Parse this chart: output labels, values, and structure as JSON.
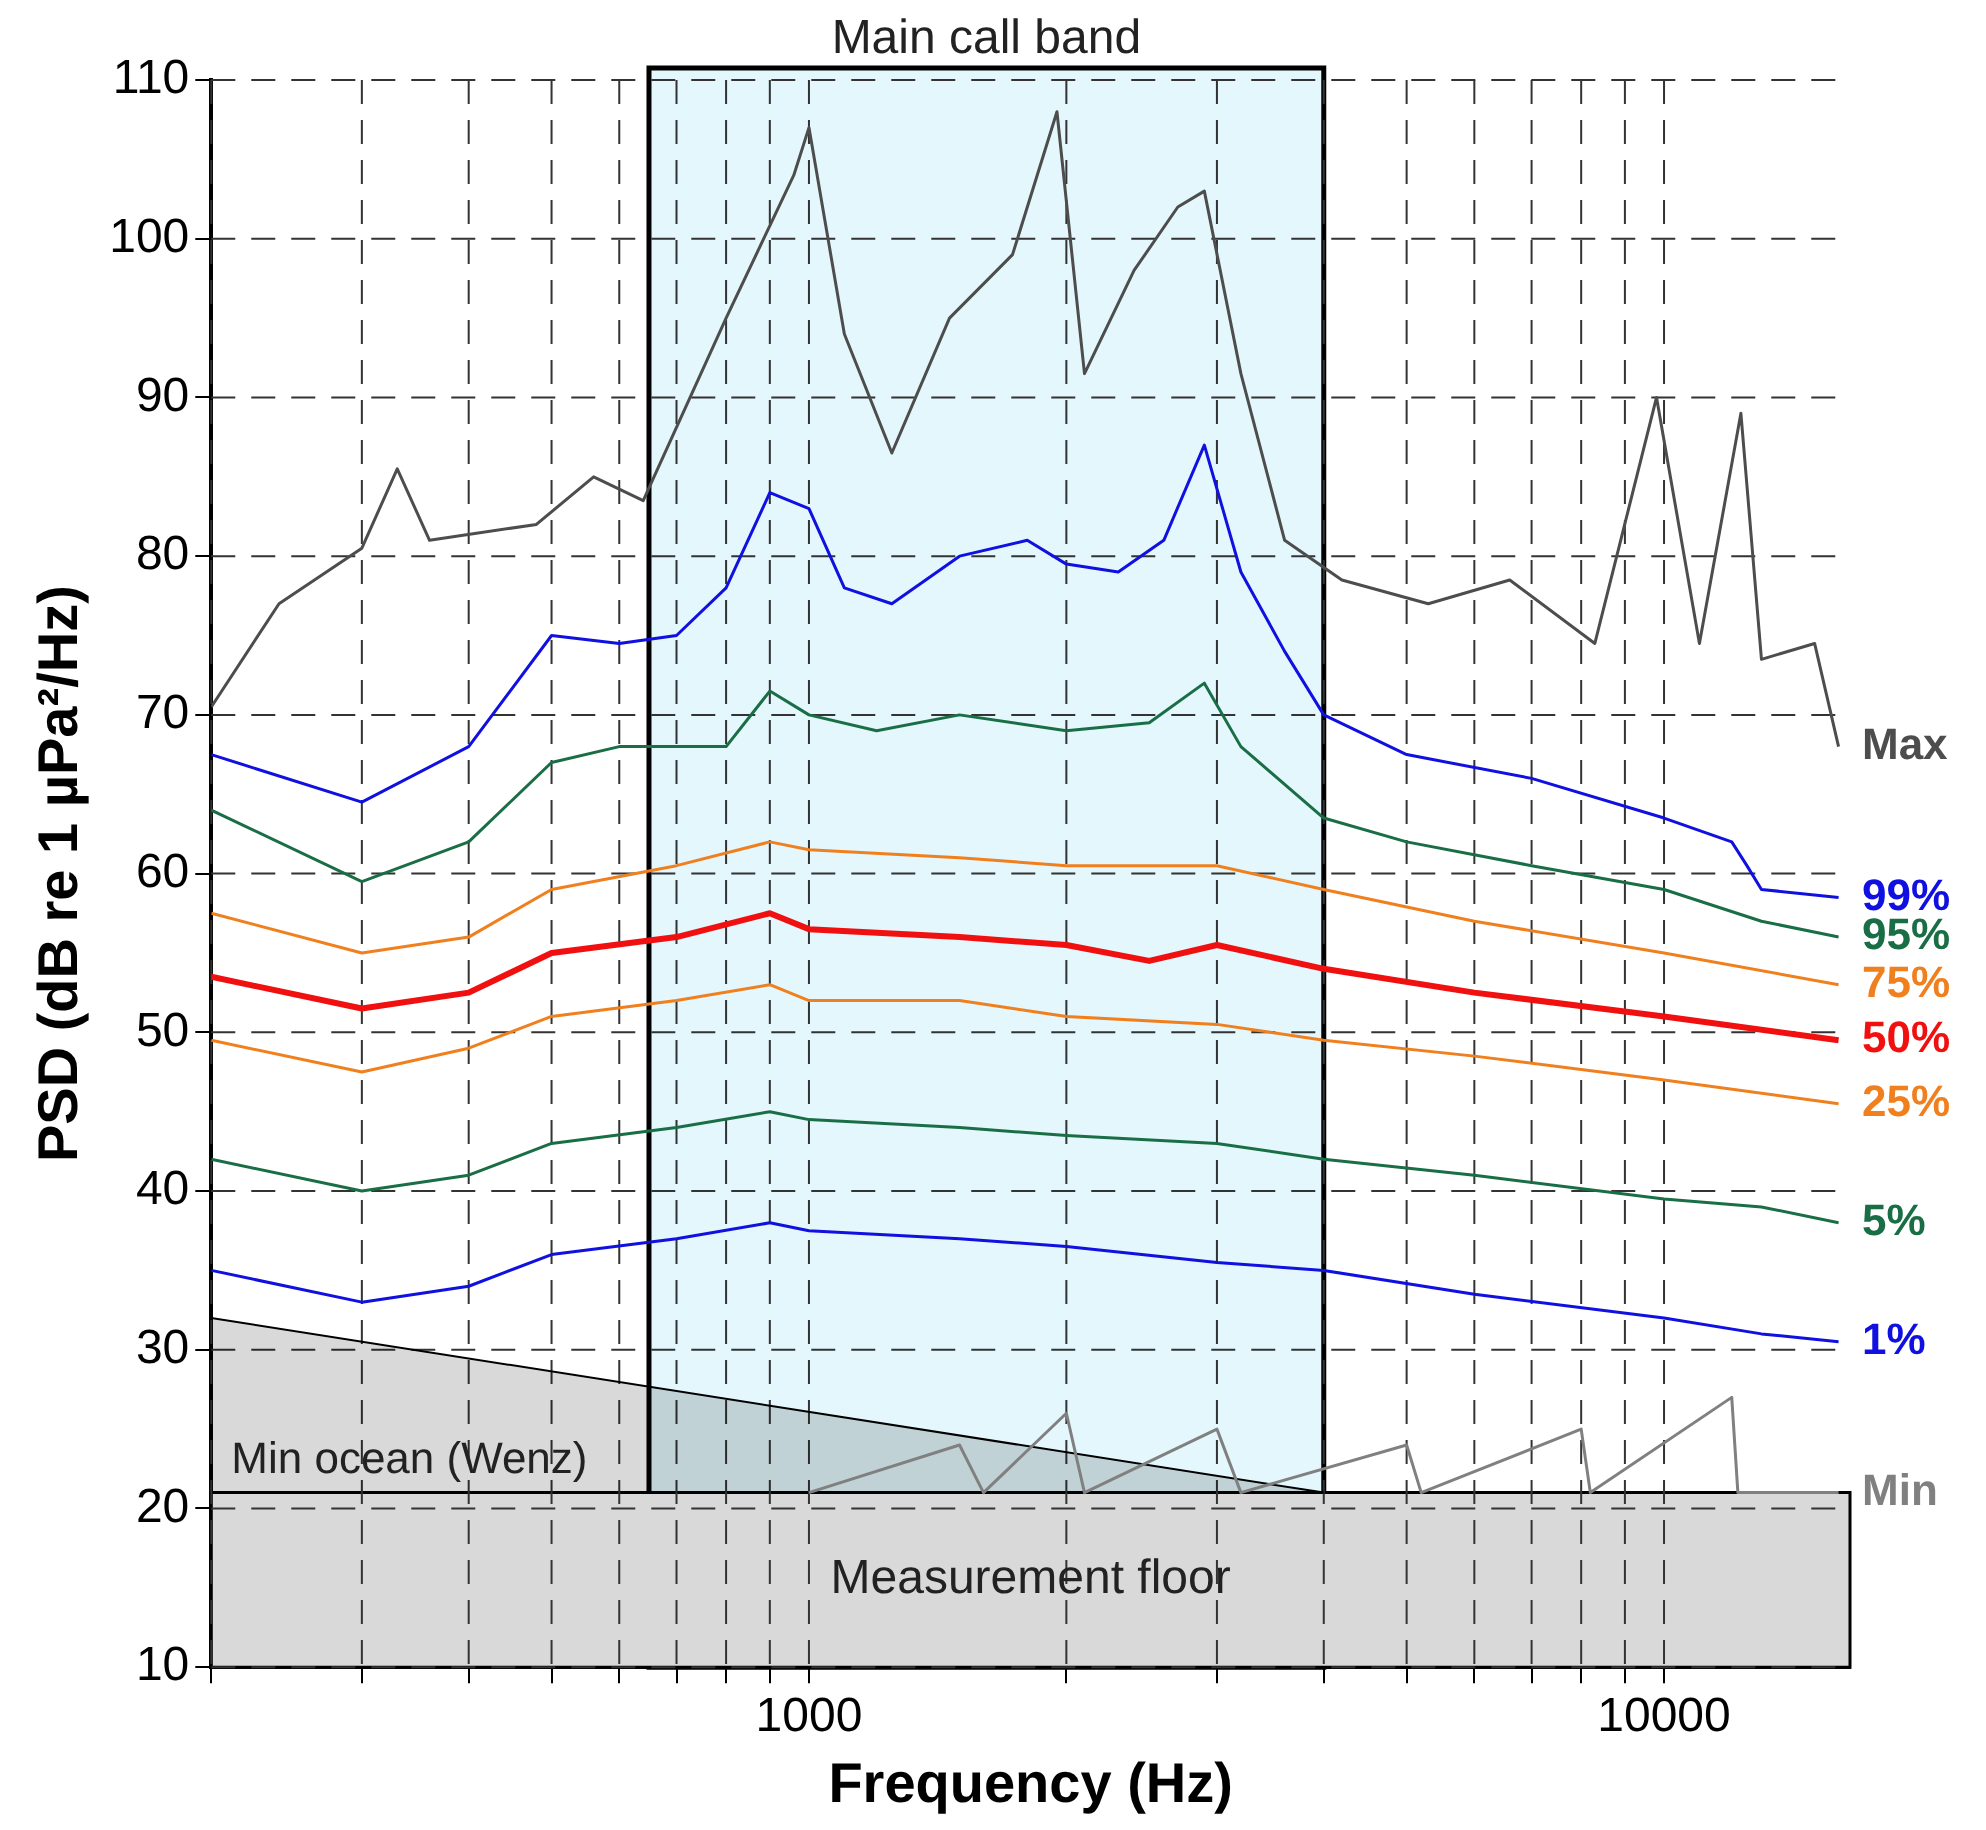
{
  "chart_data": {
    "type": "line",
    "xlabel": "Frequency (Hz)",
    "ylabel": "PSD (dB re 1 µPa²/Hz)",
    "log": "x",
    "grid": true,
    "legend": false,
    "marker": "none",
    "xlim": [
      200,
      16500
    ],
    "xticks": [
      {
        "value": 200,
        "label": null
      },
      {
        "value": 300,
        "label": null
      },
      {
        "value": 400,
        "label": null
      },
      {
        "value": 500,
        "label": null
      },
      {
        "value": 600,
        "label": null
      },
      {
        "value": 700,
        "label": null
      },
      {
        "value": 800,
        "label": null
      },
      {
        "value": 900,
        "label": null
      },
      1000,
      {
        "value": 2000,
        "label": null
      },
      {
        "value": 3000,
        "label": null
      },
      {
        "value": 4000,
        "label": null
      },
      {
        "value": 5000,
        "label": null
      },
      {
        "value": 6000,
        "label": null
      },
      {
        "value": 7000,
        "label": null
      },
      {
        "value": 8000,
        "label": null
      },
      {
        "value": 9000,
        "label": null
      },
      10000
    ],
    "ylim": [
      10,
      110
    ],
    "yticks": [
      10,
      20,
      30,
      40,
      50,
      60,
      70,
      80,
      90,
      100,
      110
    ],
    "bands": [
      {
        "axis": "x",
        "from": 650,
        "to": 4000,
        "label": "Main call band",
        "color": "#e3f7fc"
      },
      {
        "axis": "y",
        "from": 10,
        "to": 21,
        "label": "Measurement floor"
      }
    ],
    "series": [
      {
        "name": "Max",
        "color": "#4d4d4d",
        "x": [
          200,
          240,
          300,
          330,
          360,
          480,
          560,
          640,
          800,
          960,
          1000,
          1100,
          1250,
          1460,
          1730,
          1950,
          2100,
          2400,
          2700,
          2900,
          3200,
          3600,
          4200,
          5300,
          6600,
          8300,
          9800,
          11000,
          12300,
          13000,
          15000,
          16000
        ],
        "values": [
          70.5,
          77,
          80.5,
          85.5,
          81,
          82,
          85,
          83.5,
          95,
          104,
          107,
          94,
          86.5,
          95,
          99,
          108,
          91.5,
          98,
          102,
          103,
          91.5,
          81,
          78.5,
          77,
          78.5,
          74.5,
          90,
          74.5,
          89,
          73.5,
          74.5,
          68
        ]
      },
      {
        "name": "99%",
        "color": "#1010e0",
        "x": [
          200,
          300,
          400,
          500,
          600,
          700,
          800,
          900,
          1000,
          1100,
          1250,
          1500,
          1800,
          2000,
          2300,
          2600,
          2900,
          3200,
          3600,
          4000,
          5000,
          7000,
          10000,
          12000,
          12500,
          13000,
          16000
        ],
        "values": [
          67.5,
          64.5,
          68,
          75,
          74.5,
          75,
          78,
          84,
          83,
          78,
          77,
          80,
          81,
          79.5,
          79,
          81,
          87,
          79,
          74,
          70,
          67.5,
          66,
          63.5,
          62,
          60.5,
          59,
          58.5
        ]
      },
      {
        "name": "95%",
        "color": "#1a6e46",
        "x": [
          200,
          300,
          400,
          500,
          600,
          800,
          900,
          1000,
          1200,
          1500,
          2000,
          2500,
          2900,
          3200,
          4000,
          5000,
          7000,
          10000,
          13000,
          16000
        ],
        "values": [
          64,
          59.5,
          62,
          67,
          68,
          68,
          71.5,
          70,
          69,
          70,
          69,
          69.5,
          72,
          68,
          63.5,
          62,
          60.5,
          59,
          57,
          56
        ]
      },
      {
        "name": "75%",
        "color": "#f07f1e",
        "x": [
          200,
          300,
          400,
          500,
          700,
          900,
          1000,
          1500,
          2000,
          3000,
          4000,
          6000,
          10000,
          16000
        ],
        "values": [
          57.5,
          55,
          56,
          59,
          60.5,
          62,
          61.5,
          61,
          60.5,
          60.5,
          59,
          57,
          55,
          53
        ]
      },
      {
        "name": "50%",
        "color": "#f01010",
        "x": [
          200,
          300,
          400,
          500,
          700,
          900,
          1000,
          1500,
          2000,
          2500,
          3000,
          4000,
          6000,
          10000,
          16000
        ],
        "values": [
          53.5,
          51.5,
          52.5,
          55,
          56,
          57.5,
          56.5,
          56,
          55.5,
          54.5,
          55.5,
          54,
          52.5,
          51,
          49.5
        ]
      },
      {
        "name": "25%",
        "color": "#f07f1e",
        "x": [
          200,
          300,
          400,
          500,
          700,
          900,
          1000,
          1500,
          2000,
          3000,
          4000,
          6000,
          10000,
          16000
        ],
        "values": [
          49.5,
          47.5,
          49,
          51,
          52,
          53,
          52,
          52,
          51,
          50.5,
          49.5,
          48.5,
          47,
          45.5
        ]
      },
      {
        "name": "5%",
        "color": "#1a6e46",
        "x": [
          200,
          300,
          400,
          500,
          700,
          900,
          1000,
          1500,
          2000,
          3000,
          4000,
          6000,
          10000,
          13000,
          16000
        ],
        "values": [
          42,
          40,
          41,
          43,
          44,
          45,
          44.5,
          44,
          43.5,
          43,
          42,
          41,
          39.5,
          39,
          38
        ]
      },
      {
        "name": "1%",
        "color": "#1010e0",
        "x": [
          200,
          300,
          400,
          500,
          700,
          900,
          1000,
          1500,
          2000,
          3000,
          4000,
          6000,
          10000,
          13000,
          16000
        ],
        "values": [
          35,
          33,
          34,
          36,
          37,
          38,
          37.5,
          37,
          36.5,
          35.5,
          35,
          33.5,
          32,
          31,
          30.5
        ]
      },
      {
        "name": "Min",
        "color": "#808080",
        "x": [
          1000,
          1500,
          1600,
          2000,
          2100,
          3000,
          3200,
          5000,
          5200,
          8000,
          8200,
          12000,
          12200,
          16000
        ],
        "values": [
          21,
          24,
          21,
          26,
          21,
          25,
          21,
          24,
          21,
          25,
          21,
          27,
          21,
          21
        ]
      },
      {
        "name": "Min ocean (Wenz)",
        "type": "area",
        "color": "#000000",
        "x": [
          200,
          4000
        ],
        "values": [
          32,
          21
        ]
      }
    ]
  }
}
